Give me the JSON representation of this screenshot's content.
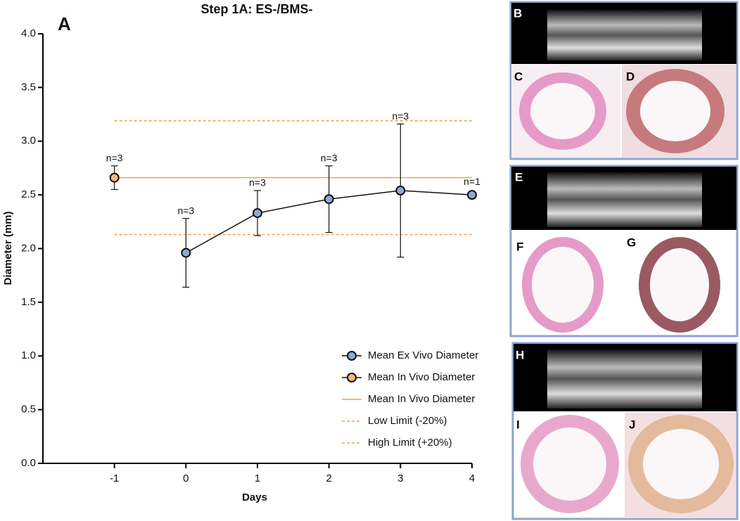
{
  "chart_data": {
    "type": "line",
    "title": "Step 1A: ES-/BMS-",
    "panel_label": "A",
    "x_label": "Days",
    "y_label": "Diameter (mm)",
    "xlim": [
      -2,
      4
    ],
    "xticks": [
      -1,
      0,
      1,
      2,
      3,
      4
    ],
    "ylim": [
      0,
      4
    ],
    "yticks": [
      {
        "value": 0,
        "label": "0.0"
      },
      0.5,
      {
        "value": 1,
        "label": "1.0"
      },
      1.5,
      {
        "value": 2,
        "label": "2.0"
      },
      2.5,
      {
        "value": 3,
        "label": "3.0"
      },
      3.5,
      {
        "value": 4,
        "label": "4.0"
      }
    ],
    "legend": "lower right",
    "series": [
      {
        "name": "Mean Ex Vivo Diameter",
        "color": "#8fa9d3",
        "x": [
          0,
          1,
          2,
          3,
          4
        ],
        "values": [
          1.96,
          2.33,
          2.46,
          2.54,
          2.5
        ],
        "errors": [
          0.32,
          0.21,
          0.31,
          0.62,
          null
        ],
        "labels": [
          "n=3",
          "n=3",
          "n=3",
          "n=3",
          "n=1"
        ]
      },
      {
        "name": "Mean In Vivo Diameter",
        "color": "#f5b97a",
        "x": [
          -1
        ],
        "values": [
          2.66
        ],
        "errors": [
          0.11
        ],
        "labels": [
          "n=3"
        ]
      }
    ],
    "reference_lines": [
      {
        "name": "Mean In Vivo Diameter",
        "value": 2.66,
        "color": "#f0a050",
        "style": "solid"
      },
      {
        "name": "Low Limit (-20%)",
        "value": 2.13,
        "color": "#f0a050",
        "style": "dashed"
      },
      {
        "name": "High Limit (+20%)",
        "value": 3.19,
        "color": "#f0a050",
        "style": "dashed"
      }
    ]
  },
  "panels": [
    "B",
    "C",
    "D",
    "E",
    "F",
    "G",
    "H",
    "I",
    "J"
  ]
}
